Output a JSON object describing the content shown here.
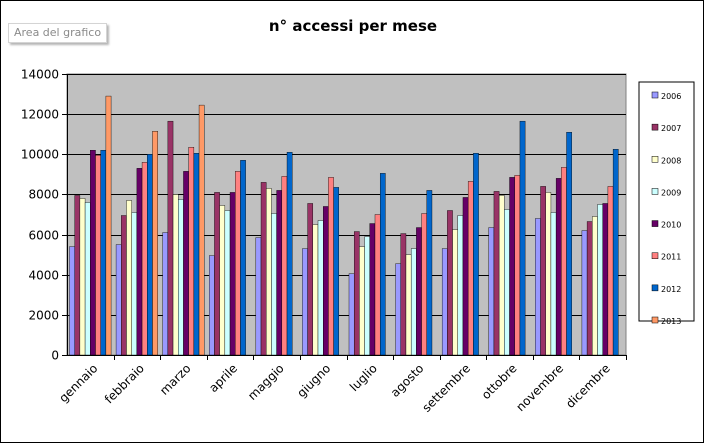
{
  "tooltip": {
    "label": "Area del grafico"
  },
  "colors": {
    "plot_bg": "#c0c0c0",
    "series": [
      "#9999ff",
      "#993366",
      "#ffffcc",
      "#ccffff",
      "#660066",
      "#ff8080",
      "#0066cc",
      "#ff9966"
    ]
  },
  "chart_data": {
    "type": "bar",
    "title": "n° accessi per mese",
    "xlabel": "",
    "ylabel": "",
    "ylim": [
      0,
      14000
    ],
    "yticks": [
      0,
      2000,
      4000,
      6000,
      8000,
      10000,
      12000,
      14000
    ],
    "grid": true,
    "legend_position": "right",
    "categories": [
      "gennaio",
      "febbraio",
      "marzo",
      "aprile",
      "maggio",
      "giugno",
      "luglio",
      "agosto",
      "settembre",
      "ottobre",
      "novembre",
      "dicembre"
    ],
    "series": [
      {
        "name": "2006",
        "values": [
          5400,
          5500,
          6100,
          4950,
          5850,
          5300,
          4050,
          4550,
          5300,
          6350,
          6800,
          6200
        ]
      },
      {
        "name": "2007",
        "values": [
          7950,
          6950,
          11650,
          8100,
          8600,
          7550,
          6150,
          6050,
          7200,
          8150,
          8400,
          6650
        ]
      },
      {
        "name": "2008",
        "values": [
          7800,
          7700,
          8000,
          7450,
          8300,
          6500,
          5400,
          5000,
          6250,
          7950,
          8100,
          6900
        ]
      },
      {
        "name": "2009",
        "values": [
          7600,
          7100,
          7750,
          7200,
          7050,
          6700,
          5900,
          5300,
          6950,
          7250,
          7100,
          7500
        ]
      },
      {
        "name": "2010",
        "values": [
          10200,
          9300,
          9150,
          8100,
          8200,
          7400,
          6550,
          6350,
          7850,
          8850,
          8800,
          7550
        ]
      },
      {
        "name": "2011",
        "values": [
          9950,
          9600,
          10350,
          9150,
          8900,
          8850,
          7000,
          7050,
          8650,
          8950,
          9350,
          8400
        ]
      },
      {
        "name": "2012",
        "values": [
          10200,
          10000,
          10050,
          9700,
          10100,
          8350,
          9050,
          8200,
          10050,
          11650,
          11100,
          10250
        ]
      },
      {
        "name": "2013",
        "values": [
          12900,
          11150,
          12450,
          null,
          null,
          null,
          null,
          null,
          null,
          null,
          null,
          null
        ]
      }
    ]
  }
}
